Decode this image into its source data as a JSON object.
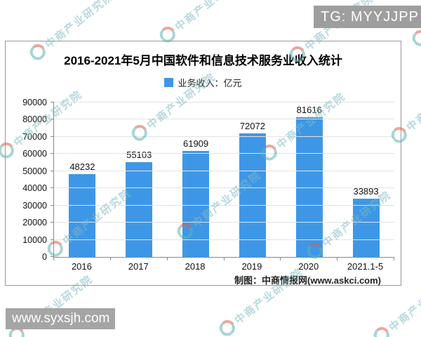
{
  "overlay": {
    "tg_label": "TG: MYYJJPP",
    "site_label": "www.syxsjh.com"
  },
  "watermark": {
    "text": "中商产业研究院"
  },
  "chart": {
    "title": "2016-2021年5月中国软件和信息技术服务业收入统计",
    "legend_label": "业务收入：亿元",
    "attribution": "制图：中商情报网(www.askci.com)",
    "bar_color": "#3E97E6"
  },
  "chart_data": {
    "type": "bar",
    "title": "2016-2021年5月中国软件和信息技术服务业收入统计",
    "categories": [
      "2016",
      "2017",
      "2018",
      "2019",
      "2020",
      "2021.1-5"
    ],
    "values": [
      48232,
      55103,
      61909,
      72072,
      81616,
      33893
    ],
    "series_name": "业务收入：亿元",
    "xlabel": "",
    "ylabel": "",
    "ylim": [
      0,
      90000
    ],
    "ytick_step": 10000,
    "grid": true,
    "legend_position": "top"
  }
}
